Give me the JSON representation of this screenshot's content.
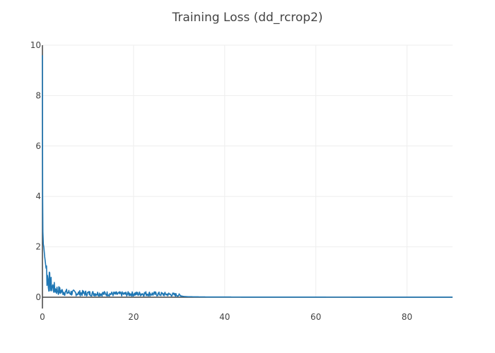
{
  "chart_data": {
    "type": "line",
    "title": "Training Loss (dd_rcrop2)",
    "xlabel": "",
    "ylabel": "",
    "xlim": [
      0,
      90
    ],
    "ylim": [
      0,
      10
    ],
    "x_ticks": [
      0,
      20,
      40,
      60,
      80
    ],
    "y_ticks": [
      0,
      2,
      4,
      6,
      8,
      10
    ],
    "grid": true,
    "legend": "none",
    "series": [
      {
        "color": "#1f77b4",
        "x": [
          0,
          0.05,
          0.1,
          0.2,
          0.3,
          0.4,
          0.5,
          0.7,
          0.9,
          1.1,
          1.4,
          1.7,
          2.0,
          2.4,
          2.8,
          3.3,
          3.8,
          4.4,
          5.0,
          6.0,
          7.0,
          8.0,
          9.0,
          10.0,
          11.0,
          12.0,
          13.0,
          14.0,
          15.0,
          16.0,
          17.0,
          18.0,
          19.0,
          20.0,
          21.0,
          22.0,
          23.0,
          24.0,
          25.0,
          26.0,
          27.0,
          28.0,
          29.0,
          30.0,
          30.5,
          31.0,
          32.0,
          34.0,
          36.0,
          40.0,
          45.0,
          50.0,
          60.0,
          70.0,
          80.0,
          90.0
        ],
        "y": [
          9.6,
          4.0,
          2.6,
          2.1,
          2.0,
          1.8,
          1.6,
          1.3,
          1.0,
          0.8,
          0.65,
          0.55,
          0.45,
          0.38,
          0.32,
          0.28,
          0.25,
          0.22,
          0.2,
          0.18,
          0.17,
          0.16,
          0.16,
          0.15,
          0.15,
          0.14,
          0.14,
          0.14,
          0.13,
          0.13,
          0.13,
          0.13,
          0.13,
          0.13,
          0.13,
          0.14,
          0.14,
          0.13,
          0.13,
          0.12,
          0.12,
          0.11,
          0.1,
          0.08,
          0.05,
          0.03,
          0.02,
          0.015,
          0.01,
          0.008,
          0.006,
          0.005,
          0.004,
          0.003,
          0.003,
          0.003
        ]
      }
    ]
  }
}
